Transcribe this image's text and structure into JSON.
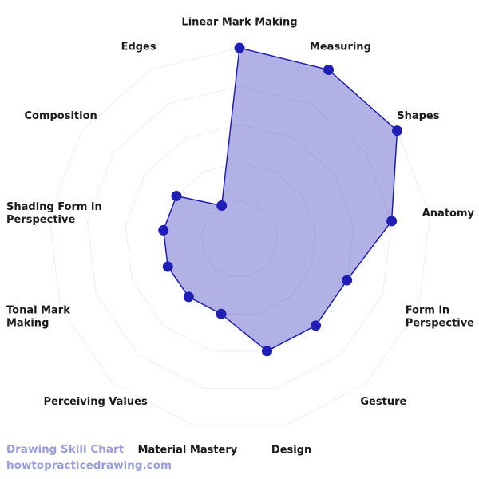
{
  "chart_data": {
    "type": "radar",
    "categories": [
      "Linear Mark Making",
      "Measuring",
      "Shapes",
      "Anatomy",
      "Form in Perspective",
      "Gesture",
      "Design",
      "Material Mastery",
      "Perceiving Values",
      "Tonal Mark Making",
      "Shading Form in Perspective",
      "Composition",
      "Edges"
    ],
    "series": [
      {
        "color": "#1f1fb8",
        "values": [
          5,
          5,
          5,
          4,
          3,
          3,
          3,
          2,
          2,
          2,
          2,
          2,
          1
        ]
      }
    ],
    "rlim": [
      0,
      5
    ],
    "rticks": [
      1,
      2,
      3,
      4,
      5
    ],
    "grid": true
  },
  "footer": {
    "title": "Drawing Skill Chart",
    "site": "howtopracticedrawing.com"
  }
}
